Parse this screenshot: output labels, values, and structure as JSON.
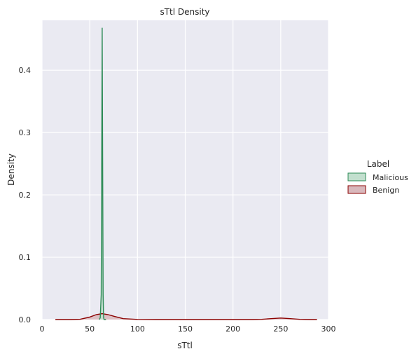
{
  "chart_data": {
    "type": "area",
    "title": "sTtl Density",
    "xlabel": "sTtl",
    "ylabel": "Density",
    "xlim": [
      0,
      300
    ],
    "ylim": [
      0,
      0.48
    ],
    "xticks": [
      0,
      50,
      100,
      150,
      200,
      250,
      300
    ],
    "yticks": [
      0.0,
      0.1,
      0.2,
      0.3,
      0.4
    ],
    "grid": true,
    "legend": {
      "title": "Label",
      "placement": "right",
      "entries": [
        "Malicious",
        "Benign"
      ]
    },
    "series": [
      {
        "name": "Malicious",
        "color": "#2e8b57",
        "fill": "#c2dfce",
        "x": [
          60,
          61,
          62,
          62.5,
          63,
          63.5,
          64,
          64.5,
          65,
          66,
          67
        ],
        "y": [
          0,
          0.003,
          0.04,
          0.25,
          0.468,
          0.25,
          0.04,
          0.003,
          0,
          0,
          0
        ]
      },
      {
        "name": "Benign",
        "color": "#8b0000",
        "fill": "#d9b8bc",
        "x": [
          14,
          30,
          40,
          50,
          57,
          63,
          69,
          76,
          85,
          100,
          120,
          150,
          200,
          220,
          230,
          240,
          250,
          260,
          270,
          280,
          288
        ],
        "y": [
          0,
          0,
          0.0005,
          0.004,
          0.008,
          0.0095,
          0.008,
          0.005,
          0.0015,
          0.0002,
          0,
          0,
          0,
          0,
          0.0004,
          0.0015,
          0.0025,
          0.0015,
          0.0004,
          0,
          0
        ]
      }
    ]
  }
}
